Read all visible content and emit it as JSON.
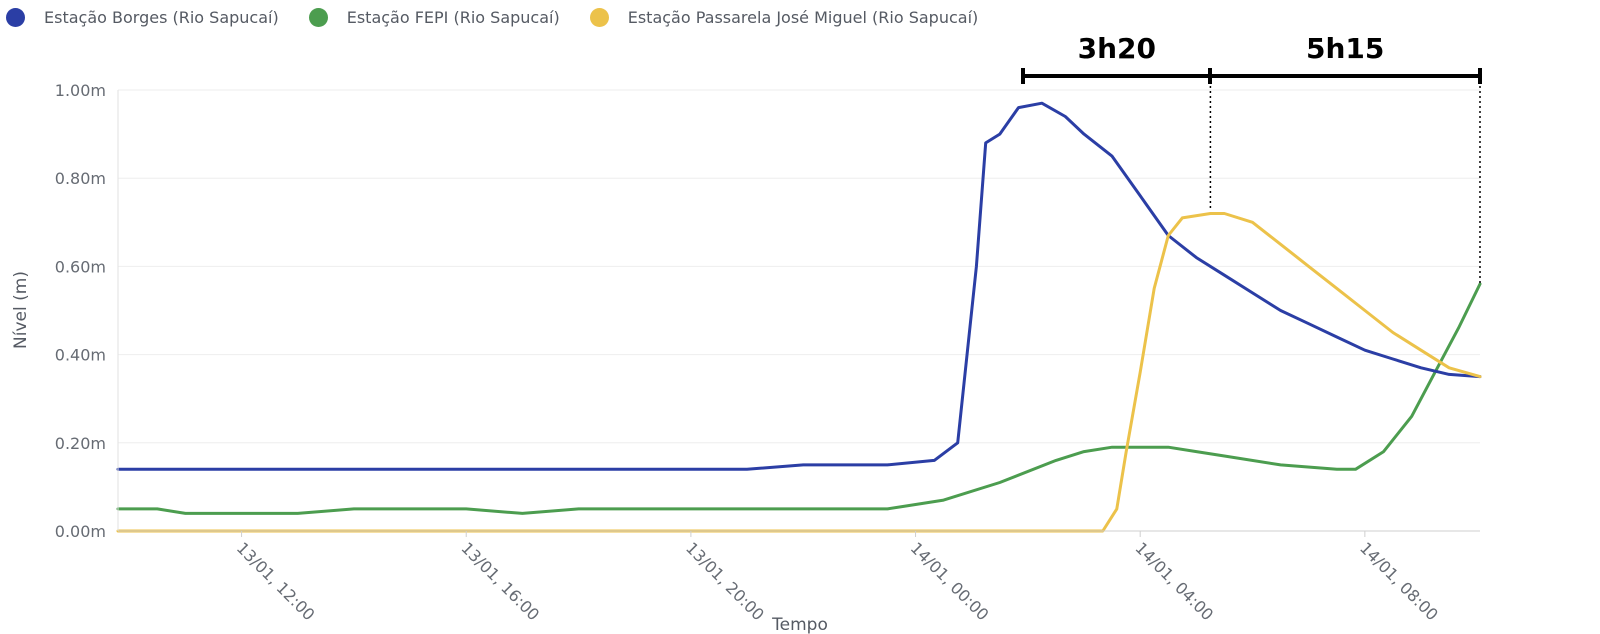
{
  "chart_data": {
    "type": "line",
    "xlabel": "Tempo",
    "ylabel": "Nível (m)",
    "x_unit": "hours (reading of date axis)",
    "xlim": [
      "13/01, 09:48",
      "14/01, 10:03"
    ],
    "ylim": [
      0,
      1.0
    ],
    "y_ticks": [
      "0.00m",
      "0.20m",
      "0.40m",
      "0.60m",
      "0.80m",
      "1.00m"
    ],
    "y_tick_values": [
      0,
      0.2,
      0.4,
      0.6,
      0.8,
      1.0
    ],
    "x_ticks": [
      "13/01, 12:00",
      "13/01, 16:00",
      "13/01, 20:00",
      "14/01, 00:00",
      "14/01, 04:00",
      "14/01, 08:00"
    ],
    "grid": true,
    "legend_position": "top-left",
    "series": [
      {
        "name": "Estação Borges (Rio Sapucaí)",
        "color": "#2b3ea5",
        "points": [
          [
            "13/01, 09:48",
            0.14
          ],
          [
            "13/01, 10:30",
            0.14
          ],
          [
            "13/01, 11:30",
            0.14
          ],
          [
            "13/01, 14:00",
            0.14
          ],
          [
            "13/01, 18:00",
            0.14
          ],
          [
            "13/01, 21:00",
            0.14
          ],
          [
            "13/01, 22:00",
            0.15
          ],
          [
            "13/01, 23:30",
            0.15
          ],
          [
            "14/01, 00:20",
            0.16
          ],
          [
            "14/01, 00:45",
            0.2
          ],
          [
            "14/01, 01:05",
            0.6
          ],
          [
            "14/01, 01:15",
            0.88
          ],
          [
            "14/01, 01:30",
            0.9
          ],
          [
            "14/01, 01:50",
            0.96
          ],
          [
            "14/01, 02:15",
            0.97
          ],
          [
            "14/01, 02:40",
            0.94
          ],
          [
            "14/01, 03:00",
            0.9
          ],
          [
            "14/01, 03:30",
            0.85
          ],
          [
            "14/01, 04:00",
            0.76
          ],
          [
            "14/01, 04:30",
            0.67
          ],
          [
            "14/01, 05:00",
            0.62
          ],
          [
            "14/01, 05:30",
            0.58
          ],
          [
            "14/01, 06:00",
            0.54
          ],
          [
            "14/01, 06:30",
            0.5
          ],
          [
            "14/01, 07:00",
            0.47
          ],
          [
            "14/01, 07:30",
            0.44
          ],
          [
            "14/01, 08:00",
            0.41
          ],
          [
            "14/01, 08:30",
            0.39
          ],
          [
            "14/01, 09:00",
            0.37
          ],
          [
            "14/01, 09:30",
            0.355
          ],
          [
            "14/01, 10:03",
            0.35
          ]
        ]
      },
      {
        "name": "Estação FEPI (Rio Sapucaí)",
        "color": "#4c9d4f",
        "points": [
          [
            "13/01, 09:48",
            0.05
          ],
          [
            "13/01, 10:30",
            0.05
          ],
          [
            "13/01, 11:00",
            0.04
          ],
          [
            "13/01, 13:00",
            0.04
          ],
          [
            "13/01, 14:00",
            0.05
          ],
          [
            "13/01, 16:00",
            0.05
          ],
          [
            "13/01, 17:00",
            0.04
          ],
          [
            "13/01, 18:00",
            0.05
          ],
          [
            "13/01, 23:30",
            0.05
          ],
          [
            "14/01, 00:30",
            0.07
          ],
          [
            "14/01, 01:30",
            0.11
          ],
          [
            "14/01, 02:30",
            0.16
          ],
          [
            "14/01, 03:00",
            0.18
          ],
          [
            "14/01, 03:30",
            0.19
          ],
          [
            "14/01, 04:30",
            0.19
          ],
          [
            "14/01, 05:00",
            0.18
          ],
          [
            "14/01, 05:30",
            0.17
          ],
          [
            "14/01, 06:30",
            0.15
          ],
          [
            "14/01, 07:30",
            0.14
          ],
          [
            "14/01, 07:50",
            0.14
          ],
          [
            "14/01, 08:20",
            0.18
          ],
          [
            "14/01, 08:50",
            0.26
          ],
          [
            "14/01, 09:20",
            0.38
          ],
          [
            "14/01, 09:40",
            0.46
          ],
          [
            "14/01, 10:03",
            0.56
          ]
        ]
      },
      {
        "name": "Estação Passarela José Miguel (Rio Sapucaí)",
        "color": "#ecc24a",
        "points": [
          [
            "13/01, 09:48",
            0.0
          ],
          [
            "14/01, 03:20",
            0.0
          ],
          [
            "14/01, 03:35",
            0.05
          ],
          [
            "14/01, 03:45",
            0.18
          ],
          [
            "14/01, 04:00",
            0.36
          ],
          [
            "14/01, 04:15",
            0.55
          ],
          [
            "14/01, 04:30",
            0.67
          ],
          [
            "14/01, 04:45",
            0.71
          ],
          [
            "14/01, 05:15",
            0.72
          ],
          [
            "14/01, 05:30",
            0.72
          ],
          [
            "14/01, 06:00",
            0.7
          ],
          [
            "14/01, 06:30",
            0.65
          ],
          [
            "14/01, 07:00",
            0.6
          ],
          [
            "14/01, 07:30",
            0.55
          ],
          [
            "14/01, 08:00",
            0.5
          ],
          [
            "14/01, 08:30",
            0.45
          ],
          [
            "14/01, 09:00",
            0.41
          ],
          [
            "14/01, 09:30",
            0.37
          ],
          [
            "14/01, 10:03",
            0.35
          ]
        ]
      }
    ],
    "annotations": [
      {
        "label": "3h20",
        "from": "14/01, 01:55",
        "to": "14/01, 05:15"
      },
      {
        "label": "5h15",
        "from": "14/01, 05:15",
        "to": "14/01, 10:03"
      }
    ]
  }
}
